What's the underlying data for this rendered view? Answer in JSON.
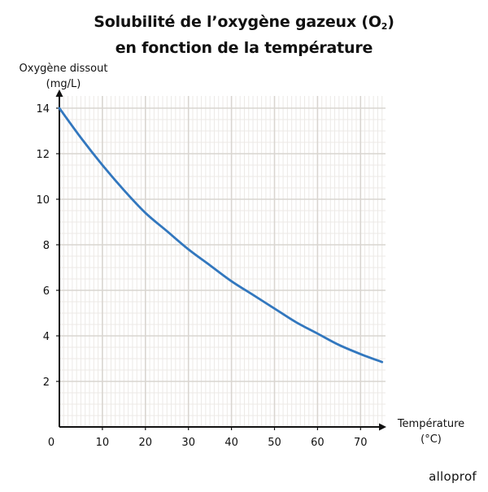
{
  "title": {
    "line1": "Solubilité de l’oxygène gazeux (O",
    "line1_sub": "2",
    "line1_end": ")",
    "line2": "en fonction de la température"
  },
  "brand": "alloprof",
  "colors": {
    "curve": "#3277be",
    "minor_grid": "#ece9e6",
    "major_grid": "#d9d5d0",
    "axis": "#111111"
  },
  "chart_data": {
    "type": "line",
    "title": "Solubilité de l’oxygène gazeux (O₂) en fonction de la température",
    "xlabel_lines": [
      "Température",
      "(°C)"
    ],
    "ylabel_lines": [
      "Oxygène dissout",
      "(mg/L)"
    ],
    "xlim": [
      0,
      75
    ],
    "ylim": [
      0,
      14.3
    ],
    "origin_label": "0",
    "x_ticks": [
      10,
      20,
      30,
      40,
      50,
      60,
      70
    ],
    "y_ticks": [
      2,
      4,
      6,
      8,
      10,
      12,
      14
    ],
    "grid": true,
    "series": [
      {
        "x": [
          0,
          5,
          10,
          15,
          20,
          25,
          30,
          35,
          40,
          45,
          50,
          55,
          60,
          65,
          70,
          75
        ],
        "y": [
          14.0,
          12.7,
          11.5,
          10.4,
          9.4,
          8.6,
          7.8,
          7.1,
          6.4,
          5.8,
          5.2,
          4.6,
          4.1,
          3.6,
          3.2,
          2.85
        ]
      }
    ]
  }
}
